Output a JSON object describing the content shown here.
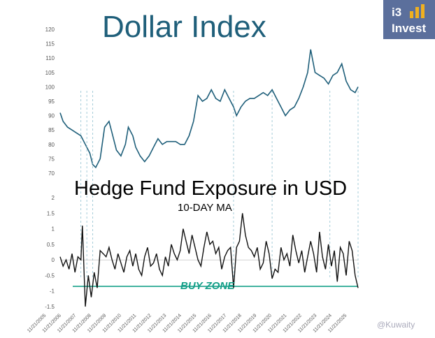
{
  "logo": {
    "line1": "i3",
    "line2": "Invest",
    "bar_color": "#f0b020",
    "bg_color": "#5b6f9c"
  },
  "watermark": "@Kuwaity",
  "chart_data": [
    {
      "type": "line",
      "title": "Dollar Index",
      "color": "#1f5f7a",
      "ylim": [
        70,
        120
      ],
      "yticks": [
        70,
        75,
        80,
        85,
        90,
        95,
        100,
        105,
        110,
        115,
        120
      ],
      "x": [
        2005.9,
        2006.1,
        2006.4,
        2006.7,
        2007.0,
        2007.3,
        2007.6,
        2007.9,
        2008.1,
        2008.3,
        2008.6,
        2008.9,
        2009.2,
        2009.4,
        2009.7,
        2010.0,
        2010.3,
        2010.5,
        2010.8,
        2011.0,
        2011.3,
        2011.6,
        2011.9,
        2012.2,
        2012.5,
        2012.8,
        2013.1,
        2013.4,
        2013.7,
        2014.0,
        2014.3,
        2014.6,
        2014.9,
        2015.2,
        2015.5,
        2015.8,
        2016.1,
        2016.4,
        2016.7,
        2017.0,
        2017.3,
        2017.6,
        2017.8,
        2018.1,
        2018.4,
        2018.7,
        2019.0,
        2019.3,
        2019.6,
        2019.9,
        2020.2,
        2020.5,
        2020.8,
        2021.1,
        2021.4,
        2021.7,
        2022.0,
        2022.3,
        2022.6,
        2022.8,
        2023.1,
        2023.4,
        2023.7,
        2024.0,
        2024.3,
        2024.6,
        2024.9,
        2025.2,
        2025.5,
        2025.8,
        2026.0
      ],
      "values": [
        91,
        88,
        86,
        85,
        84,
        83,
        80,
        77,
        73,
        72,
        75,
        86,
        88,
        84,
        78,
        76,
        80,
        86,
        83,
        79,
        76,
        74,
        76,
        79,
        82,
        80,
        81,
        81,
        81,
        80,
        80,
        83,
        88,
        97,
        95,
        96,
        99,
        96,
        95,
        99,
        96,
        93,
        90,
        93,
        95,
        96,
        96,
        97,
        98,
        97,
        99,
        96,
        93,
        90,
        92,
        93,
        96,
        100,
        105,
        113,
        105,
        104,
        103,
        101,
        104,
        105,
        108,
        102,
        99,
        98,
        100
      ]
    },
    {
      "type": "line",
      "title": "Hedge Fund Exposure in USD",
      "subtitle": "10-DAY MA",
      "annotation": "BUY ZONE",
      "buy_zone_level": -0.85,
      "buy_zone_color": "#17a08a",
      "color": "#111111",
      "ylim": [
        -1.5,
        2
      ],
      "yticks": [
        -1.5,
        -1,
        -0.5,
        0,
        0.5,
        1,
        1.5,
        2
      ],
      "ytick_labels": [
        "-1.5",
        "-1",
        "-0.5",
        "0",
        "0.5",
        "1",
        "1.5",
        "2"
      ],
      "categories": [
        "11/21/2005",
        "11/21/2006",
        "11/21/2007",
        "11/21/2008",
        "11/21/2009",
        "11/21/2010",
        "11/21/2011",
        "11/21/2012",
        "11/21/2013",
        "11/21/2014",
        "11/21/2015",
        "11/21/2016",
        "11/21/2017",
        "11/21/2018",
        "11/21/2019",
        "11/21/2020",
        "11/21/2021",
        "11/21/2022",
        "11/21/2023",
        "11/21/2024",
        "11/21/2025"
      ],
      "x": [
        2005.9,
        2006.1,
        2006.3,
        2006.5,
        2006.7,
        2006.9,
        2007.1,
        2007.3,
        2007.4,
        2007.6,
        2007.8,
        2008.0,
        2008.2,
        2008.4,
        2008.6,
        2008.8,
        2009.0,
        2009.2,
        2009.4,
        2009.6,
        2009.8,
        2010.0,
        2010.2,
        2010.4,
        2010.6,
        2010.8,
        2011.0,
        2011.2,
        2011.4,
        2011.6,
        2011.8,
        2012.0,
        2012.2,
        2012.4,
        2012.6,
        2012.8,
        2013.0,
        2013.2,
        2013.4,
        2013.6,
        2013.8,
        2014.0,
        2014.2,
        2014.4,
        2014.6,
        2014.8,
        2015.0,
        2015.2,
        2015.4,
        2015.6,
        2015.8,
        2016.0,
        2016.2,
        2016.4,
        2016.6,
        2016.8,
        2017.0,
        2017.2,
        2017.4,
        2017.6,
        2017.8,
        2018.0,
        2018.2,
        2018.4,
        2018.6,
        2018.8,
        2019.0,
        2019.2,
        2019.4,
        2019.6,
        2019.8,
        2020.0,
        2020.2,
        2020.4,
        2020.6,
        2020.8,
        2021.0,
        2021.2,
        2021.4,
        2021.6,
        2021.8,
        2022.0,
        2022.2,
        2022.4,
        2022.6,
        2022.8,
        2023.0,
        2023.2,
        2023.4,
        2023.6,
        2023.8,
        2024.0,
        2024.2,
        2024.4,
        2024.6,
        2024.8,
        2025.0,
        2025.2,
        2025.4,
        2025.6,
        2025.8,
        2026.0
      ],
      "values": [
        0.1,
        -0.2,
        0.0,
        -0.3,
        0.2,
        -0.4,
        0.1,
        0.0,
        1.1,
        -1.5,
        -0.5,
        -1.2,
        -0.4,
        -0.9,
        0.3,
        0.2,
        0.1,
        0.4,
        0.0,
        -0.3,
        0.2,
        -0.1,
        -0.4,
        0.1,
        0.3,
        -0.2,
        0.2,
        -0.3,
        -0.5,
        0.1,
        0.4,
        -0.2,
        -0.1,
        0.2,
        -0.3,
        -0.5,
        0.1,
        -0.2,
        0.5,
        0.2,
        0.0,
        0.3,
        1.0,
        0.6,
        0.2,
        0.8,
        0.4,
        0.0,
        -0.2,
        0.4,
        0.9,
        0.5,
        0.6,
        0.2,
        0.4,
        -0.3,
        0.1,
        0.3,
        0.4,
        -0.9,
        0.4,
        0.6,
        1.5,
        0.8,
        0.4,
        0.3,
        0.1,
        0.4,
        -0.3,
        -0.1,
        0.6,
        0.2,
        -0.6,
        -0.3,
        -0.4,
        0.4,
        0.0,
        0.2,
        -0.2,
        0.8,
        0.3,
        -0.1,
        0.3,
        -0.4,
        0.1,
        0.6,
        0.2,
        -0.4,
        0.9,
        0.1,
        -0.3,
        0.5,
        -0.2,
        0.3,
        -0.7,
        0.4,
        0.2,
        -0.5,
        0.6,
        0.3,
        -0.5,
        -0.9
      ]
    }
  ]
}
